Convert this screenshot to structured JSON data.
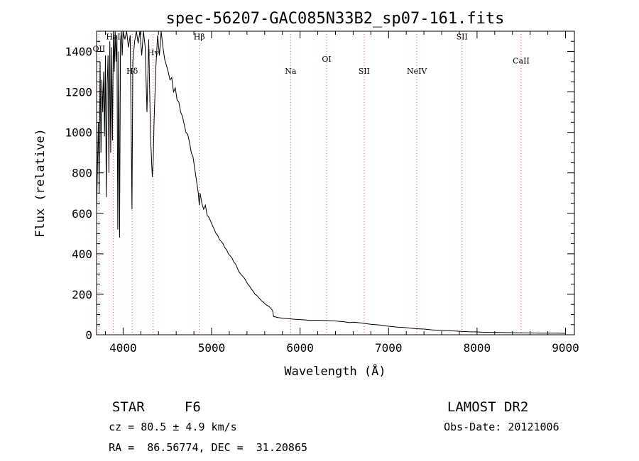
{
  "chart_data": {
    "type": "line",
    "title": "spec-56207-GAC085N33B2_sp07-161.fits",
    "xlabel": "Wavelength (Å)",
    "ylabel": "Flux (relative)",
    "xlim": [
      3700,
      9100
    ],
    "ylim": [
      0,
      1500
    ],
    "xticks": [
      4000,
      5000,
      6000,
      7000,
      8000,
      9000
    ],
    "yticks": [
      0,
      200,
      400,
      600,
      800,
      1000,
      1200,
      1400
    ],
    "grid": false,
    "series": [
      {
        "points": [
          [
            3700,
            620
          ],
          [
            3710,
            820
          ],
          [
            3720,
            1050
          ],
          [
            3730,
            700
          ],
          [
            3740,
            1350
          ],
          [
            3750,
            900
          ],
          [
            3760,
            1260
          ],
          [
            3770,
            1100
          ],
          [
            3780,
            1300
          ],
          [
            3790,
            980
          ],
          [
            3800,
            1380
          ],
          [
            3810,
            680
          ],
          [
            3820,
            1240
          ],
          [
            3830,
            1380
          ],
          [
            3840,
            800
          ],
          [
            3850,
            1450
          ],
          [
            3860,
            900
          ],
          [
            3870,
            1420
          ],
          [
            3880,
            960
          ],
          [
            3890,
            1500
          ],
          [
            3900,
            1300
          ],
          [
            3910,
            1500
          ],
          [
            3920,
            1350
          ],
          [
            3930,
            1480
          ],
          [
            3940,
            520
          ],
          [
            3950,
            1400
          ],
          [
            3960,
            480
          ],
          [
            3970,
            1450
          ],
          [
            3980,
            1500
          ],
          [
            3990,
            1380
          ],
          [
            4000,
            1500
          ],
          [
            4020,
            1460
          ],
          [
            4040,
            1500
          ],
          [
            4060,
            1420
          ],
          [
            4080,
            1480
          ],
          [
            4100,
            620
          ],
          [
            4110,
            1350
          ],
          [
            4130,
            1450
          ],
          [
            4150,
            1500
          ],
          [
            4170,
            1440
          ],
          [
            4190,
            1500
          ],
          [
            4210,
            1380
          ],
          [
            4230,
            1500
          ],
          [
            4250,
            1420
          ],
          [
            4270,
            1100
          ],
          [
            4290,
            1460
          ],
          [
            4310,
            980
          ],
          [
            4330,
            780
          ],
          [
            4340,
            860
          ],
          [
            4350,
            1050
          ],
          [
            4370,
            1320
          ],
          [
            4390,
            1480
          ],
          [
            4410,
            1380
          ],
          [
            4430,
            1500
          ],
          [
            4450,
            1420
          ],
          [
            4470,
            1360
          ],
          [
            4490,
            1330
          ],
          [
            4510,
            1300
          ],
          [
            4530,
            1260
          ],
          [
            4550,
            1270
          ],
          [
            4570,
            1200
          ],
          [
            4590,
            1220
          ],
          [
            4610,
            1160
          ],
          [
            4630,
            1150
          ],
          [
            4650,
            1100
          ],
          [
            4670,
            1080
          ],
          [
            4690,
            1040
          ],
          [
            4710,
            1000
          ],
          [
            4730,
            990
          ],
          [
            4750,
            950
          ],
          [
            4770,
            900
          ],
          [
            4790,
            880
          ],
          [
            4810,
            820
          ],
          [
            4830,
            760
          ],
          [
            4850,
            700
          ],
          [
            4861,
            640
          ],
          [
            4870,
            700
          ],
          [
            4890,
            650
          ],
          [
            4910,
            620
          ],
          [
            4930,
            640
          ],
          [
            4950,
            590
          ],
          [
            4970,
            580
          ],
          [
            4990,
            560
          ],
          [
            5010,
            540
          ],
          [
            5030,
            520
          ],
          [
            5050,
            500
          ],
          [
            5070,
            490
          ],
          [
            5090,
            470
          ],
          [
            5110,
            460
          ],
          [
            5130,
            450
          ],
          [
            5150,
            430
          ],
          [
            5170,
            420
          ],
          [
            5190,
            400
          ],
          [
            5210,
            390
          ],
          [
            5230,
            380
          ],
          [
            5250,
            360
          ],
          [
            5270,
            350
          ],
          [
            5290,
            330
          ],
          [
            5310,
            310
          ],
          [
            5330,
            300
          ],
          [
            5350,
            290
          ],
          [
            5370,
            280
          ],
          [
            5390,
            265
          ],
          [
            5410,
            250
          ],
          [
            5430,
            240
          ],
          [
            5450,
            225
          ],
          [
            5470,
            215
          ],
          [
            5490,
            200
          ],
          [
            5510,
            195
          ],
          [
            5530,
            185
          ],
          [
            5550,
            175
          ],
          [
            5570,
            165
          ],
          [
            5590,
            160
          ],
          [
            5610,
            150
          ],
          [
            5630,
            145
          ],
          [
            5650,
            140
          ],
          [
            5670,
            130
          ],
          [
            5690,
            120
          ],
          [
            5700,
            90
          ],
          [
            5750,
            85
          ],
          [
            5800,
            82
          ],
          [
            5850,
            80
          ],
          [
            5900,
            78
          ],
          [
            5950,
            76
          ],
          [
            6000,
            75
          ],
          [
            6100,
            72
          ],
          [
            6200,
            72
          ],
          [
            6300,
            70
          ],
          [
            6400,
            68
          ],
          [
            6500,
            64
          ],
          [
            6560,
            60
          ],
          [
            6600,
            62
          ],
          [
            6700,
            58
          ],
          [
            6800,
            52
          ],
          [
            6900,
            48
          ],
          [
            7000,
            42
          ],
          [
            7100,
            38
          ],
          [
            7200,
            35
          ],
          [
            7300,
            30
          ],
          [
            7400,
            28
          ],
          [
            7500,
            24
          ],
          [
            7600,
            22
          ],
          [
            7700,
            20
          ],
          [
            7800,
            17
          ],
          [
            7900,
            15
          ],
          [
            8000,
            14
          ],
          [
            8100,
            12
          ],
          [
            8200,
            12
          ],
          [
            8300,
            11
          ],
          [
            8400,
            10
          ],
          [
            8500,
            9
          ],
          [
            8600,
            9
          ],
          [
            8700,
            8
          ],
          [
            8800,
            8
          ],
          [
            8900,
            8
          ],
          [
            9000,
            7
          ]
        ]
      }
    ],
    "line_marks": [
      {
        "label": "OII",
        "x": 3727,
        "label_y": 1400
      },
      {
        "label": "HeI",
        "x": 3889,
        "label_y": 1460
      },
      {
        "label": "Hδ",
        "x": 4102,
        "label_y": 1290
      },
      {
        "label": "Hγ",
        "x": 4340,
        "label_y": 1380
      },
      {
        "label": "Hβ",
        "x": 4861,
        "label_y": 1460
      },
      {
        "label": "Na",
        "x": 5893,
        "label_y": 1290
      },
      {
        "label": "OI",
        "x": 6300,
        "label_y": 1350
      },
      {
        "label": "SII",
        "x": 6724,
        "label_y": 1290
      },
      {
        "label": "NeIV",
        "x": 7320,
        "label_y": 1290
      },
      {
        "label": "SII",
        "x": 7830,
        "label_y": 1460
      },
      {
        "label": "CaII",
        "x": 8498,
        "label_y": 1340
      }
    ]
  },
  "info": {
    "object_class": "STAR",
    "subclass": "F6",
    "survey": "LAMOST DR2",
    "redshift": "cz = 80.5 ± 4.9 km/s",
    "obs_date": "Obs-Date: 20121006",
    "coords": "RA =  86.56774, DEC =  31.20865"
  }
}
